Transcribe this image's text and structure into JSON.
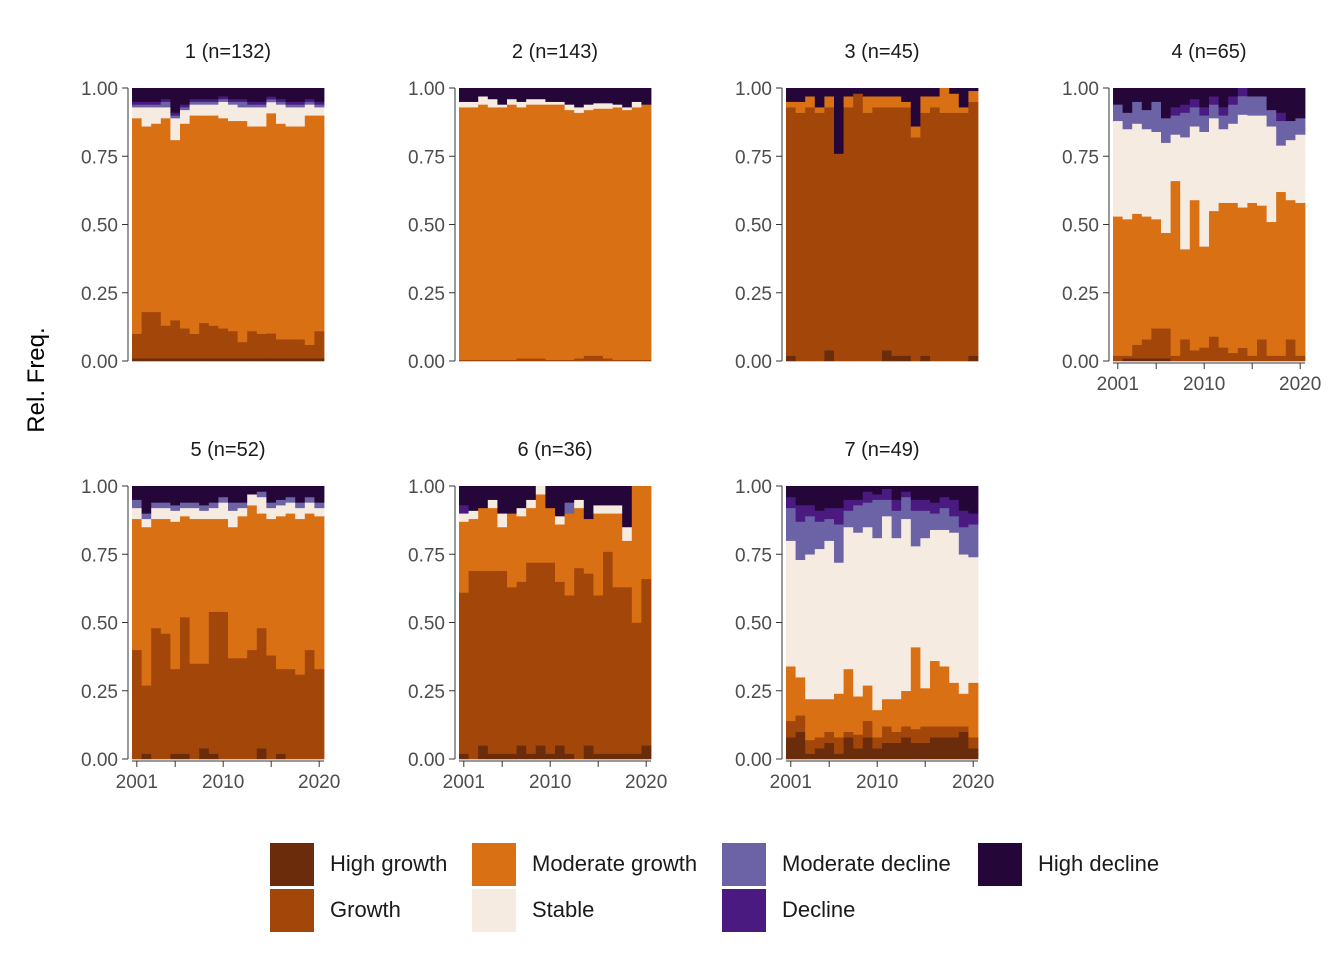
{
  "chart_data": {
    "type": "bar",
    "stacked": true,
    "ylabel": "Rel. Freq.",
    "ylim": [
      0,
      1
    ],
    "yticks": [
      "0.00",
      "0.25",
      "0.50",
      "0.75",
      "1.00"
    ],
    "xticks": [
      "2001",
      "2010",
      "2020"
    ],
    "x": [
      2001,
      2002,
      2003,
      2004,
      2005,
      2006,
      2007,
      2008,
      2009,
      2010,
      2011,
      2012,
      2013,
      2014,
      2015,
      2016,
      2017,
      2018,
      2019,
      2020
    ],
    "categories": [
      "High growth",
      "Growth",
      "Moderate growth",
      "Stable",
      "Moderate decline",
      "Decline",
      "High decline"
    ],
    "colors": [
      "#6b2c0c",
      "#a3460a",
      "#d97014",
      "#f5ebe1",
      "#6c62a6",
      "#4a1a80",
      "#240638"
    ],
    "legend_position": "bottom",
    "facets": [
      {
        "title": "1 (n=132)",
        "hg": [
          0.01,
          0.01,
          0.01,
          0.01,
          0.01,
          0.01,
          0.01,
          0.01,
          0.01,
          0.01,
          0.01,
          0.01,
          0.01,
          0.01,
          0.01,
          0.01,
          0.01,
          0.01,
          0.01,
          0.01
        ],
        "gr": [
          0.09,
          0.17,
          0.17,
          0.12,
          0.14,
          0.11,
          0.09,
          0.13,
          0.12,
          0.11,
          0.1,
          0.06,
          0.1,
          0.09,
          0.09,
          0.07,
          0.07,
          0.07,
          0.05,
          0.1
        ],
        "mg": [
          0.79,
          0.68,
          0.69,
          0.76,
          0.66,
          0.75,
          0.8,
          0.76,
          0.77,
          0.77,
          0.77,
          0.81,
          0.75,
          0.76,
          0.79,
          0.79,
          0.78,
          0.78,
          0.84,
          0.79
        ],
        "st": [
          0.04,
          0.07,
          0.06,
          0.04,
          0.08,
          0.05,
          0.04,
          0.04,
          0.04,
          0.06,
          0.06,
          0.05,
          0.07,
          0.07,
          0.04,
          0.07,
          0.07,
          0.07,
          0.04,
          0.03
        ],
        "md": [
          0.01,
          0.01,
          0.01,
          0.02,
          0.01,
          0.01,
          0.01,
          0.01,
          0.01,
          0.01,
          0.01,
          0.02,
          0.01,
          0.01,
          0.01,
          0.01,
          0.01,
          0.01,
          0.01,
          0.01
        ],
        "dc": [
          0.01,
          0.01,
          0.01,
          0.01,
          0.01,
          0.01,
          0.01,
          0.01,
          0.01,
          0.01,
          0.01,
          0.01,
          0.01,
          0.01,
          0.01,
          0.01,
          0.01,
          0.01,
          0.01,
          0.01
        ],
        "hd": [
          0.05,
          0.05,
          0.05,
          0.04,
          0.09,
          0.06,
          0.04,
          0.04,
          0.04,
          0.03,
          0.04,
          0.04,
          0.05,
          0.05,
          0.03,
          0.04,
          0.05,
          0.05,
          0.04,
          0.05
        ]
      },
      {
        "title": "2 (n=143)",
        "hg": [
          0.0,
          0.0,
          0.0,
          0.0,
          0.0,
          0.0,
          0.0,
          0.0,
          0.0,
          0.0,
          0.0,
          0.0,
          0.0,
          0.0,
          0.0,
          0.0,
          0.0,
          0.0,
          0.0,
          0.0
        ],
        "gr": [
          0.005,
          0.005,
          0.005,
          0.005,
          0.005,
          0.005,
          0.01,
          0.01,
          0.01,
          0.005,
          0.005,
          0.005,
          0.01,
          0.02,
          0.02,
          0.01,
          0.005,
          0.005,
          0.005,
          0.005
        ],
        "mg": [
          0.925,
          0.925,
          0.935,
          0.925,
          0.925,
          0.935,
          0.92,
          0.93,
          0.93,
          0.935,
          0.935,
          0.915,
          0.9,
          0.9,
          0.905,
          0.915,
          0.925,
          0.915,
          0.925,
          0.935
        ],
        "st": [
          0.02,
          0.02,
          0.03,
          0.03,
          0.01,
          0.02,
          0.02,
          0.02,
          0.02,
          0.01,
          0.01,
          0.02,
          0.02,
          0.02,
          0.02,
          0.02,
          0.01,
          0.01,
          0.02,
          0.0
        ],
        "md": [
          0.0,
          0.0,
          0.0,
          0.0,
          0.0,
          0.0,
          0.0,
          0.0,
          0.0,
          0.0,
          0.0,
          0.0,
          0.0,
          0.0,
          0.0,
          0.0,
          0.0,
          0.0,
          0.0,
          0.0
        ],
        "dc": [
          0.0,
          0.0,
          0.0,
          0.0,
          0.0,
          0.0,
          0.0,
          0.0,
          0.0,
          0.0,
          0.0,
          0.0,
          0.0,
          0.0,
          0.0,
          0.0,
          0.0,
          0.0,
          0.0,
          0.0
        ],
        "hd": [
          0.05,
          0.05,
          0.03,
          0.04,
          0.06,
          0.04,
          0.05,
          0.04,
          0.04,
          0.05,
          0.05,
          0.06,
          0.07,
          0.06,
          0.055,
          0.055,
          0.06,
          0.07,
          0.05,
          0.06
        ]
      },
      {
        "title": "3 (n=45)",
        "hg": [
          0.02,
          0.0,
          0.0,
          0.0,
          0.04,
          0.0,
          0.0,
          0.0,
          0.0,
          0.0,
          0.04,
          0.02,
          0.02,
          0.0,
          0.02,
          0.0,
          0.0,
          0.0,
          0.0,
          0.02
        ],
        "gr": [
          0.91,
          0.91,
          0.93,
          0.91,
          0.89,
          0.76,
          0.93,
          0.98,
          0.91,
          0.93,
          0.89,
          0.91,
          0.91,
          0.82,
          0.89,
          0.93,
          0.91,
          0.91,
          0.91,
          0.93
        ],
        "mg": [
          0.02,
          0.04,
          0.04,
          0.02,
          0.04,
          0.0,
          0.04,
          0.0,
          0.06,
          0.04,
          0.04,
          0.04,
          0.02,
          0.04,
          0.06,
          0.04,
          0.09,
          0.07,
          0.02,
          0.04
        ],
        "st": [
          0.0,
          0.0,
          0.0,
          0.0,
          0.0,
          0.0,
          0.0,
          0.0,
          0.0,
          0.0,
          0.0,
          0.0,
          0.0,
          0.0,
          0.0,
          0.0,
          0.0,
          0.0,
          0.0,
          0.0
        ],
        "md": [
          0.0,
          0.0,
          0.0,
          0.0,
          0.0,
          0.0,
          0.0,
          0.0,
          0.0,
          0.0,
          0.0,
          0.0,
          0.0,
          0.0,
          0.0,
          0.0,
          0.0,
          0.0,
          0.0,
          0.0
        ],
        "dc": [
          0.0,
          0.0,
          0.0,
          0.0,
          0.0,
          0.0,
          0.0,
          0.0,
          0.0,
          0.0,
          0.0,
          0.0,
          0.0,
          0.0,
          0.0,
          0.0,
          0.0,
          0.0,
          0.0,
          0.0
        ],
        "hd": [
          0.05,
          0.05,
          0.03,
          0.07,
          0.03,
          0.24,
          0.03,
          0.02,
          0.03,
          0.03,
          0.03,
          0.03,
          0.05,
          0.14,
          0.03,
          0.03,
          0.0,
          0.02,
          0.07,
          0.01
        ]
      },
      {
        "title": "4 (n=65)",
        "hg": [
          0.0,
          0.01,
          0.01,
          0.01,
          0.01,
          0.01,
          0.0,
          0.0,
          0.0,
          0.0,
          0.0,
          0.0,
          0.0,
          0.0,
          0.0,
          0.0,
          0.0,
          0.0,
          0.0,
          0.0
        ],
        "gr": [
          0.02,
          0.01,
          0.05,
          0.07,
          0.11,
          0.11,
          0.02,
          0.08,
          0.04,
          0.05,
          0.09,
          0.05,
          0.03,
          0.05,
          0.02,
          0.08,
          0.02,
          0.02,
          0.08,
          0.02
        ],
        "mg": [
          0.51,
          0.5,
          0.48,
          0.45,
          0.4,
          0.35,
          0.64,
          0.33,
          0.55,
          0.37,
          0.46,
          0.53,
          0.55,
          0.53,
          0.56,
          0.49,
          0.49,
          0.6,
          0.51,
          0.56
        ],
        "st": [
          0.35,
          0.33,
          0.33,
          0.32,
          0.32,
          0.33,
          0.17,
          0.41,
          0.27,
          0.42,
          0.34,
          0.27,
          0.29,
          0.35,
          0.32,
          0.33,
          0.35,
          0.17,
          0.22,
          0.25
        ],
        "md": [
          0.06,
          0.06,
          0.08,
          0.07,
          0.11,
          0.09,
          0.07,
          0.09,
          0.07,
          0.06,
          0.05,
          0.05,
          0.07,
          0.07,
          0.07,
          0.07,
          0.06,
          0.09,
          0.07,
          0.06
        ],
        "dc": [
          0.0,
          0.0,
          0.0,
          0.0,
          0.0,
          0.0,
          0.03,
          0.03,
          0.03,
          0.03,
          0.03,
          0.03,
          0.03,
          0.03,
          0.0,
          0.0,
          0.0,
          0.03,
          0.0,
          0.0
        ],
        "hd": [
          0.06,
          0.09,
          0.05,
          0.08,
          0.05,
          0.11,
          0.07,
          0.06,
          0.04,
          0.07,
          0.03,
          0.07,
          0.03,
          0.0,
          0.03,
          0.03,
          0.08,
          0.09,
          0.12,
          0.11
        ]
      },
      {
        "title": "5 (n=52)",
        "hg": [
          0.0,
          0.02,
          0.0,
          0.0,
          0.02,
          0.02,
          0.0,
          0.04,
          0.02,
          0.0,
          0.0,
          0.0,
          0.0,
          0.04,
          0.0,
          0.02,
          0.0,
          0.0,
          0.0,
          0.0
        ],
        "gr": [
          0.4,
          0.25,
          0.48,
          0.46,
          0.31,
          0.5,
          0.35,
          0.31,
          0.52,
          0.54,
          0.37,
          0.37,
          0.4,
          0.44,
          0.38,
          0.31,
          0.33,
          0.31,
          0.4,
          0.33
        ],
        "mg": [
          0.48,
          0.58,
          0.4,
          0.42,
          0.54,
          0.37,
          0.53,
          0.53,
          0.34,
          0.34,
          0.48,
          0.52,
          0.53,
          0.42,
          0.5,
          0.56,
          0.57,
          0.57,
          0.5,
          0.56
        ],
        "st": [
          0.04,
          0.03,
          0.04,
          0.04,
          0.04,
          0.03,
          0.04,
          0.03,
          0.04,
          0.06,
          0.06,
          0.03,
          0.04,
          0.06,
          0.04,
          0.04,
          0.04,
          0.04,
          0.04,
          0.03
        ],
        "md": [
          0.03,
          0.02,
          0.02,
          0.02,
          0.02,
          0.02,
          0.02,
          0.02,
          0.02,
          0.02,
          0.03,
          0.02,
          0.0,
          0.02,
          0.02,
          0.02,
          0.02,
          0.02,
          0.02,
          0.02
        ],
        "dc": [
          0.0,
          0.0,
          0.0,
          0.0,
          0.0,
          0.0,
          0.0,
          0.0,
          0.0,
          0.0,
          0.0,
          0.0,
          0.0,
          0.0,
          0.0,
          0.0,
          0.0,
          0.0,
          0.0,
          0.0
        ],
        "hd": [
          0.05,
          0.1,
          0.06,
          0.06,
          0.07,
          0.06,
          0.06,
          0.07,
          0.06,
          0.04,
          0.06,
          0.06,
          0.03,
          0.02,
          0.06,
          0.05,
          0.04,
          0.06,
          0.04,
          0.06
        ]
      },
      {
        "title": "6 (n=36)",
        "hg": [
          0.02,
          0.0,
          0.05,
          0.02,
          0.02,
          0.02,
          0.05,
          0.02,
          0.05,
          0.02,
          0.05,
          0.02,
          0.0,
          0.05,
          0.02,
          0.02,
          0.02,
          0.02,
          0.02,
          0.05
        ],
        "gr": [
          0.59,
          0.69,
          0.64,
          0.67,
          0.67,
          0.61,
          0.6,
          0.7,
          0.67,
          0.7,
          0.6,
          0.58,
          0.7,
          0.63,
          0.58,
          0.74,
          0.61,
          0.61,
          0.48,
          0.61
        ],
        "mg": [
          0.26,
          0.19,
          0.23,
          0.23,
          0.16,
          0.27,
          0.24,
          0.2,
          0.25,
          0.2,
          0.21,
          0.3,
          0.22,
          0.2,
          0.3,
          0.14,
          0.27,
          0.17,
          0.5,
          0.34
        ],
        "st": [
          0.03,
          0.03,
          0.0,
          0.03,
          0.05,
          0.0,
          0.03,
          0.03,
          0.03,
          0.0,
          0.03,
          0.0,
          0.03,
          0.0,
          0.03,
          0.03,
          0.03,
          0.05,
          0.0,
          0.0
        ],
        "md": [
          0.0,
          0.0,
          0.0,
          0.0,
          0.0,
          0.0,
          0.0,
          0.0,
          0.0,
          0.0,
          0.0,
          0.04,
          0.0,
          0.0,
          0.0,
          0.0,
          0.0,
          0.0,
          0.0,
          0.0
        ],
        "dc": [
          0.03,
          0.0,
          0.0,
          0.0,
          0.0,
          0.0,
          0.0,
          0.0,
          0.0,
          0.0,
          0.0,
          0.0,
          0.0,
          0.0,
          0.0,
          0.0,
          0.0,
          0.0,
          0.0,
          0.0
        ],
        "hd": [
          0.07,
          0.09,
          0.08,
          0.05,
          0.1,
          0.1,
          0.08,
          0.05,
          0.0,
          0.08,
          0.11,
          0.06,
          0.05,
          0.12,
          0.07,
          0.07,
          0.07,
          0.15,
          0.0,
          0.0
        ]
      },
      {
        "title": "7 (n=49)",
        "hg": [
          0.08,
          0.1,
          0.02,
          0.04,
          0.06,
          0.02,
          0.08,
          0.04,
          0.08,
          0.04,
          0.06,
          0.06,
          0.08,
          0.06,
          0.06,
          0.08,
          0.08,
          0.08,
          0.1,
          0.04
        ],
        "gr": [
          0.06,
          0.06,
          0.05,
          0.04,
          0.04,
          0.06,
          0.02,
          0.05,
          0.06,
          0.04,
          0.06,
          0.04,
          0.04,
          0.05,
          0.06,
          0.04,
          0.04,
          0.04,
          0.02,
          0.04
        ],
        "mg": [
          0.2,
          0.14,
          0.15,
          0.14,
          0.12,
          0.16,
          0.23,
          0.14,
          0.13,
          0.1,
          0.1,
          0.12,
          0.13,
          0.3,
          0.14,
          0.24,
          0.22,
          0.16,
          0.12,
          0.2
        ],
        "st": [
          0.46,
          0.43,
          0.53,
          0.55,
          0.58,
          0.48,
          0.52,
          0.6,
          0.58,
          0.63,
          0.67,
          0.59,
          0.63,
          0.37,
          0.55,
          0.48,
          0.5,
          0.55,
          0.51,
          0.46
        ],
        "md": [
          0.12,
          0.14,
          0.14,
          0.1,
          0.08,
          0.14,
          0.06,
          0.1,
          0.09,
          0.14,
          0.06,
          0.1,
          0.08,
          0.13,
          0.1,
          0.06,
          0.08,
          0.06,
          0.1,
          0.12
        ],
        "dc": [
          0.04,
          0.06,
          0.04,
          0.04,
          0.04,
          0.06,
          0.04,
          0.02,
          0.04,
          0.02,
          0.04,
          0.04,
          0.02,
          0.04,
          0.04,
          0.04,
          0.04,
          0.06,
          0.06,
          0.04
        ],
        "hd": [
          0.04,
          0.07,
          0.07,
          0.09,
          0.08,
          0.08,
          0.05,
          0.05,
          0.02,
          0.03,
          0.01,
          0.05,
          0.02,
          0.05,
          0.05,
          0.06,
          0.04,
          0.05,
          0.09,
          0.1
        ]
      }
    ]
  }
}
